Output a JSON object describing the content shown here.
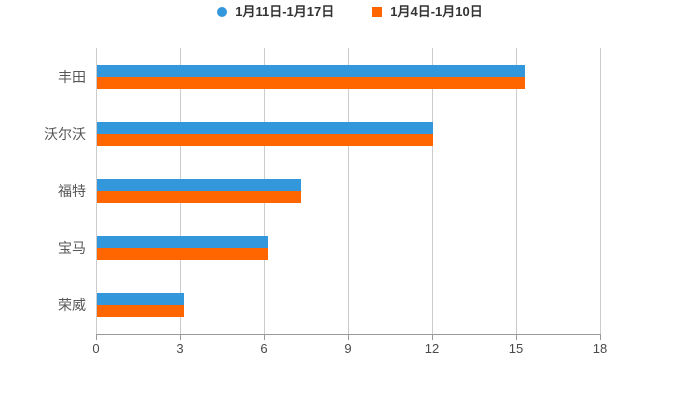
{
  "legend": {
    "items": [
      {
        "label": "1月11日-1月17日",
        "color": "#3398db",
        "shape": "circle"
      },
      {
        "label": "1月4日-1月10日",
        "color": "#ff6600",
        "shape": "square"
      }
    ]
  },
  "chart_data": {
    "type": "bar",
    "orientation": "horizontal",
    "title": "",
    "xlabel": "",
    "ylabel": "",
    "categories": [
      "丰田",
      "沃尔沃",
      "福特",
      "宝马",
      "荣威"
    ],
    "series": [
      {
        "name": "1月11日-1月17日",
        "color": "#3398db",
        "values": [
          15.3,
          12.0,
          7.3,
          6.1,
          3.1
        ]
      },
      {
        "name": "1月4日-1月10日",
        "color": "#ff6600",
        "values": [
          15.3,
          12.0,
          7.3,
          6.1,
          3.1
        ]
      }
    ],
    "xlim": [
      0,
      18
    ],
    "xticks": [
      0,
      3,
      6,
      9,
      12,
      15,
      18
    ],
    "grid": true,
    "legend_position": "top"
  },
  "colors": {
    "background": "#ffffff",
    "gridline": "#cccccc",
    "axis": "#999999",
    "tick_label": "#4a4a4a",
    "category_label": "#575757",
    "legend_label": "#333333"
  }
}
